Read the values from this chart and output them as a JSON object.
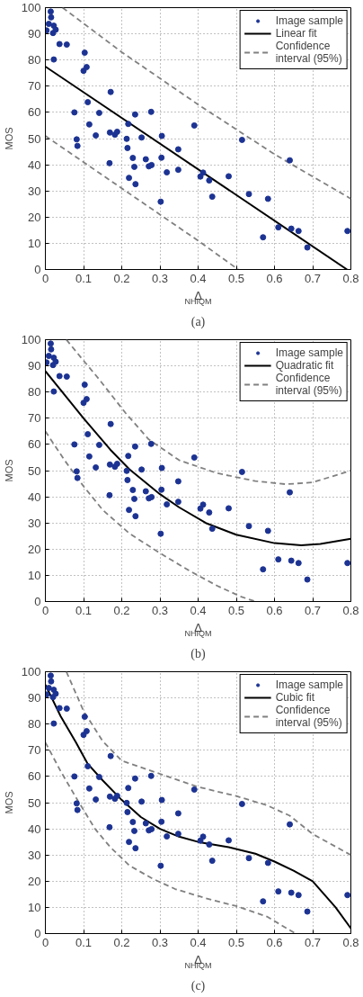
{
  "chart_data": [
    {
      "type": "scatter",
      "xlabel": "Δ$_{NHIQM}$",
      "ylabel": "MOS",
      "annotations": [
        "(a)"
      ],
      "xlim": [
        0,
        0.8
      ],
      "ylim": [
        0,
        100
      ],
      "xticks": [
        0,
        0.1,
        0.2,
        0.3,
        0.4,
        0.5,
        0.6,
        0.7,
        0.8
      ],
      "yticks": [
        0,
        10,
        20,
        30,
        40,
        50,
        60,
        70,
        80,
        90,
        100
      ],
      "grid": true,
      "legend": "top right",
      "series": [
        {
          "name": "Image sample",
          "type": "scatter",
          "marker": "circle",
          "color": "#1c3393",
          "x": [
            0.003,
            0.009,
            0.014,
            0.015,
            0.02,
            0.022,
            0.027,
            0.022,
            0.037,
            0.056,
            0.076,
            0.082,
            0.084,
            0.1,
            0.103,
            0.108,
            0.111,
            0.115,
            0.132,
            0.141,
            0.168,
            0.169,
            0.171,
            0.182,
            0.188,
            0.213,
            0.215,
            0.217,
            0.219,
            0.229,
            0.233,
            0.235,
            0.236,
            0.252,
            0.263,
            0.271,
            0.277,
            0.278,
            0.302,
            0.304,
            0.305,
            0.318,
            0.348,
            0.348,
            0.39,
            0.406,
            0.413,
            0.429,
            0.437,
            0.48,
            0.515,
            0.533,
            0.583,
            0.57,
            0.61,
            0.64,
            0.644,
            0.663,
            0.686,
            0.791
          ],
          "values": [
            91.3,
            93.8,
            98.5,
            96.3,
            90.3,
            93.1,
            91.6,
            80.2,
            86.1,
            85.9,
            60,
            49.7,
            47.2,
            75.9,
            82.8,
            77.3,
            63.9,
            55.4,
            51.2,
            59.8,
            40.6,
            52.3,
            67.8,
            51.5,
            52.6,
            49.9,
            46.4,
            55.6,
            35,
            42.6,
            39.2,
            59.2,
            32.6,
            50.4,
            42.1,
            39.4,
            60.2,
            39.9,
            25.9,
            42.7,
            51,
            37.1,
            45.9,
            38.1,
            55,
            35.5,
            37,
            34,
            27.8,
            35.6,
            49.5,
            28.8,
            27,
            12.3,
            16.1,
            41.7,
            15.6,
            14.7,
            8.4,
            14.7
          ]
        },
        {
          "name": "Linear fit",
          "type": "line",
          "line_style": "solid",
          "color": "#000000",
          "x": [
            0,
            0.79
          ],
          "values": [
            77.5,
            0
          ]
        },
        {
          "name": "Confidence interval (95%)",
          "type": "line",
          "line_style": "dashed",
          "color": "#808080",
          "x": [
            0.045,
            0.2,
            0.4,
            0.6,
            0.8
          ],
          "values": [
            100,
            83,
            63,
            44,
            27
          ]
        },
        {
          "type": "line",
          "line_style": "dashed",
          "color": "#808080",
          "x": [
            0,
            0.1,
            0.2,
            0.3,
            0.4,
            0.505
          ],
          "values": [
            51,
            41,
            31,
            21,
            11,
            0
          ]
        }
      ]
    },
    {
      "type": "scatter",
      "xlabel": "Δ$_{NHIQM}$",
      "ylabel": "MOS",
      "annotations": [
        "(b)"
      ],
      "xlim": [
        0,
        0.8
      ],
      "ylim": [
        0,
        100
      ],
      "xticks": [
        0,
        0.1,
        0.2,
        0.3,
        0.4,
        0.5,
        0.6,
        0.7,
        0.8
      ],
      "yticks": [
        0,
        10,
        20,
        30,
        40,
        50,
        60,
        70,
        80,
        90,
        100
      ],
      "grid": true,
      "legend": "top right",
      "series": [
        {
          "name": "Image sample",
          "type": "scatter",
          "marker": "circle",
          "color": "#1c3393",
          "x": [
            0.003,
            0.009,
            0.014,
            0.015,
            0.02,
            0.022,
            0.027,
            0.022,
            0.037,
            0.056,
            0.076,
            0.082,
            0.084,
            0.1,
            0.103,
            0.108,
            0.111,
            0.115,
            0.132,
            0.141,
            0.168,
            0.169,
            0.171,
            0.182,
            0.188,
            0.213,
            0.215,
            0.217,
            0.219,
            0.229,
            0.233,
            0.235,
            0.236,
            0.252,
            0.263,
            0.271,
            0.277,
            0.278,
            0.302,
            0.304,
            0.305,
            0.318,
            0.348,
            0.348,
            0.39,
            0.406,
            0.413,
            0.429,
            0.437,
            0.48,
            0.515,
            0.533,
            0.583,
            0.57,
            0.61,
            0.64,
            0.644,
            0.663,
            0.686,
            0.791
          ],
          "values": [
            91.3,
            93.8,
            98.5,
            96.3,
            90.3,
            93.1,
            91.6,
            80.2,
            86.1,
            85.9,
            60,
            49.7,
            47.2,
            75.9,
            82.8,
            77.3,
            63.9,
            55.4,
            51.2,
            59.8,
            40.6,
            52.3,
            67.8,
            51.5,
            52.6,
            49.9,
            46.4,
            55.6,
            35,
            42.6,
            39.2,
            59.2,
            32.6,
            50.4,
            42.1,
            39.4,
            60.2,
            39.9,
            25.9,
            42.7,
            51,
            37.1,
            45.9,
            38.1,
            55,
            35.5,
            37,
            34,
            27.8,
            35.6,
            49.5,
            28.8,
            27,
            12.3,
            16.1,
            41.7,
            15.6,
            14.7,
            8.4,
            14.7
          ]
        },
        {
          "name": "Quadratic fit",
          "type": "line",
          "line_style": "solid",
          "color": "#000000",
          "x": [
            0,
            0.05,
            0.1,
            0.17,
            0.22,
            0.3,
            0.35,
            0.42,
            0.5,
            0.6,
            0.67,
            0.72,
            0.8
          ],
          "values": [
            88,
            79,
            70,
            58,
            50.5,
            41,
            36,
            30,
            25.5,
            22.3,
            21.5,
            22,
            24
          ]
        },
        {
          "name": "Confidence interval (95%)",
          "type": "line",
          "line_style": "dashed",
          "color": "#808080",
          "x": [
            0.055,
            0.1,
            0.14,
            0.21,
            0.27,
            0.35,
            0.45,
            0.55,
            0.63,
            0.7,
            0.8
          ],
          "values": [
            100,
            92,
            85,
            72,
            62,
            54,
            49,
            46,
            44.8,
            45.5,
            50
          ]
        },
        {
          "type": "line",
          "line_style": "dashed",
          "color": "#808080",
          "x": [
            0,
            0.05,
            0.1,
            0.15,
            0.22,
            0.3,
            0.38,
            0.45,
            0.51,
            0.55
          ],
          "values": [
            65,
            54,
            44,
            35,
            26,
            18.5,
            11.5,
            6,
            2,
            0
          ]
        }
      ]
    },
    {
      "type": "scatter",
      "xlabel": "Δ$_{NHIQM}$",
      "ylabel": "MOS",
      "annotations": [
        "(c)"
      ],
      "xlim": [
        0,
        0.8
      ],
      "ylim": [
        0,
        100
      ],
      "xticks": [
        0,
        0.1,
        0.2,
        0.3,
        0.4,
        0.5,
        0.6,
        0.7,
        0.8
      ],
      "yticks": [
        0,
        10,
        20,
        30,
        40,
        50,
        60,
        70,
        80,
        90,
        100
      ],
      "grid": true,
      "legend": "top right",
      "series": [
        {
          "name": "Image sample",
          "type": "scatter",
          "marker": "circle",
          "color": "#1c3393",
          "x": [
            0.003,
            0.009,
            0.014,
            0.015,
            0.02,
            0.022,
            0.027,
            0.022,
            0.037,
            0.056,
            0.076,
            0.082,
            0.084,
            0.1,
            0.103,
            0.108,
            0.111,
            0.115,
            0.132,
            0.141,
            0.168,
            0.169,
            0.171,
            0.182,
            0.188,
            0.213,
            0.215,
            0.217,
            0.219,
            0.229,
            0.233,
            0.235,
            0.236,
            0.252,
            0.263,
            0.271,
            0.277,
            0.278,
            0.302,
            0.304,
            0.305,
            0.318,
            0.348,
            0.348,
            0.39,
            0.406,
            0.413,
            0.429,
            0.437,
            0.48,
            0.515,
            0.533,
            0.583,
            0.57,
            0.61,
            0.64,
            0.644,
            0.663,
            0.686,
            0.791
          ],
          "values": [
            91.3,
            93.8,
            98.5,
            96.3,
            90.3,
            93.1,
            91.6,
            80.2,
            86.1,
            85.9,
            60,
            49.7,
            47.2,
            75.9,
            82.8,
            77.3,
            63.9,
            55.4,
            51.2,
            59.8,
            40.6,
            52.3,
            67.8,
            51.5,
            52.6,
            49.9,
            46.4,
            55.6,
            35,
            42.6,
            39.2,
            59.2,
            32.6,
            50.4,
            42.1,
            39.4,
            60.2,
            39.9,
            25.9,
            42.7,
            51,
            37.1,
            45.9,
            38.1,
            55,
            35.5,
            37,
            34,
            27.8,
            35.6,
            49.5,
            28.8,
            27,
            12.3,
            16.1,
            41.7,
            15.6,
            14.7,
            8.4,
            14.7
          ]
        },
        {
          "name": "Cubic fit",
          "type": "line",
          "line_style": "solid",
          "color": "#000000",
          "x": [
            0,
            0.04,
            0.08,
            0.11,
            0.15,
            0.2,
            0.25,
            0.3,
            0.35,
            0.4,
            0.48,
            0.55,
            0.6,
            0.65,
            0.7,
            0.76,
            0.8
          ],
          "values": [
            95,
            83,
            73,
            65,
            58.5,
            51,
            44.5,
            40,
            37,
            35,
            33,
            30.5,
            27.5,
            24,
            20,
            10,
            2
          ]
        },
        {
          "name": "Confidence interval (95%)",
          "type": "line",
          "line_style": "dashed",
          "color": "#808080",
          "x": [
            0.055,
            0.1,
            0.15,
            0.2,
            0.3,
            0.4,
            0.5,
            0.58,
            0.64,
            0.7,
            0.8
          ],
          "values": [
            100,
            85,
            73.5,
            66,
            61,
            56,
            52.5,
            49,
            45,
            38,
            30
          ]
        },
        {
          "type": "line",
          "line_style": "dashed",
          "color": "#808080",
          "x": [
            0,
            0.04,
            0.08,
            0.13,
            0.17,
            0.22,
            0.28,
            0.34,
            0.42,
            0.5,
            0.58,
            0.655
          ],
          "values": [
            73,
            62,
            52,
            40,
            33,
            26,
            21,
            17,
            13.5,
            10.5,
            6.5,
            0
          ]
        }
      ]
    }
  ]
}
